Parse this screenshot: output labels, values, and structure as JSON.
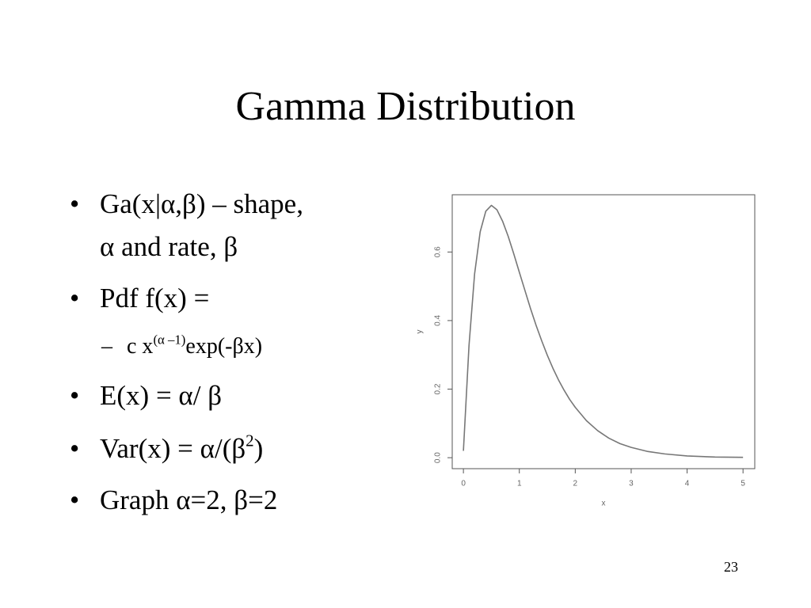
{
  "slide": {
    "title": "Gamma Distribution",
    "bullets": [
      [
        "Ga(x|α,β) – shape,",
        "α and rate, β"
      ],
      [
        "Pdf f(x) ="
      ],
      [
        "E(x) = α/ β"
      ],
      [
        "Var(x) = α/(β",
        "2",
        ")"
      ],
      [
        "Graph α=2, β=2"
      ]
    ],
    "sub_bullet": [
      "c x",
      "(α –1)",
      "exp(-βx)"
    ],
    "page_number": "23"
  },
  "chart_data": {
    "type": "line",
    "xlabel": "x",
    "ylabel": "y",
    "x": [
      0,
      0.1,
      0.2,
      0.3,
      0.4,
      0.5,
      0.6,
      0.7,
      0.8,
      0.9,
      1.0,
      1.1,
      1.2,
      1.3,
      1.4,
      1.5,
      1.6,
      1.7,
      1.8,
      1.9,
      2.0,
      2.2,
      2.4,
      2.6,
      2.8,
      3.0,
      3.3,
      3.6,
      4.0,
      4.5,
      5.0
    ],
    "values": [
      0.02,
      0.327,
      0.536,
      0.659,
      0.719,
      0.736,
      0.723,
      0.69,
      0.646,
      0.595,
      0.541,
      0.488,
      0.435,
      0.386,
      0.341,
      0.299,
      0.261,
      0.227,
      0.197,
      0.17,
      0.147,
      0.108,
      0.079,
      0.057,
      0.041,
      0.03,
      0.018,
      0.011,
      0.005,
      0.002,
      0.001
    ],
    "color": "#777777",
    "xlim": [
      -0.2,
      5.21
    ],
    "ylim": [
      -0.032,
      0.767
    ],
    "xticks": [
      0,
      1,
      2,
      3,
      4,
      5
    ],
    "yticks": [
      {
        "value": 0,
        "label": "0.0"
      },
      0.2,
      0.4,
      0.6
    ]
  }
}
